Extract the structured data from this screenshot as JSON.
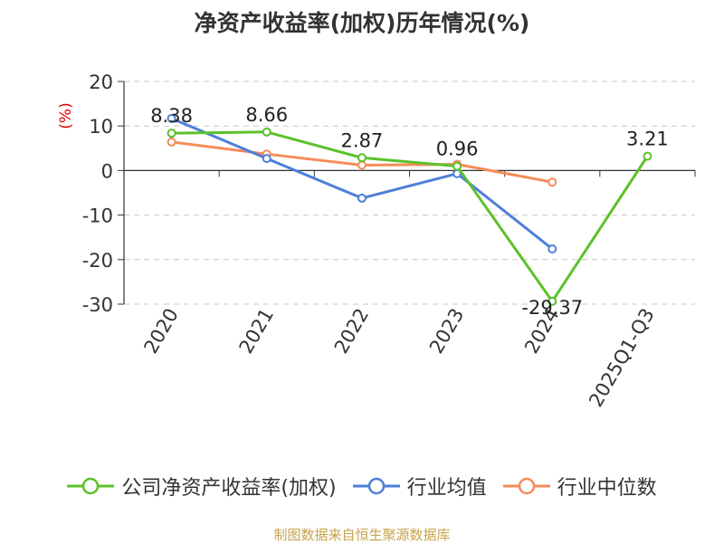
{
  "chart_data": {
    "type": "line",
    "title": "净资产收益率(加权)历年情况(%)",
    "ylabel": "(%)",
    "ylim": [
      -30,
      20
    ],
    "yticks": [
      20,
      10,
      0,
      -10,
      -20,
      -30
    ],
    "grid": true,
    "legend_position": "bottom",
    "categories": [
      "2020",
      "2021",
      "2022",
      "2023",
      "2024",
      "2025Q1-Q3"
    ],
    "series": [
      {
        "name": "公司净资产收益率(加权)",
        "color": "#5cc12b",
        "values": [
          8.38,
          8.66,
          2.87,
          0.96,
          -29.37,
          3.21
        ],
        "labels": [
          "8.38",
          "8.66",
          "2.87",
          "0.96",
          "-29.37",
          "3.21"
        ]
      },
      {
        "name": "行业均值",
        "color": "#4d7fd9",
        "values": [
          11.7,
          2.7,
          -6.2,
          -0.7,
          -17.6,
          null
        ]
      },
      {
        "name": "行业中位数",
        "color": "#f58c5a",
        "values": [
          6.4,
          3.7,
          1.2,
          1.4,
          -2.6,
          null
        ]
      }
    ]
  },
  "footer": {
    "source": "制图数据来自恒生聚源数据库"
  }
}
